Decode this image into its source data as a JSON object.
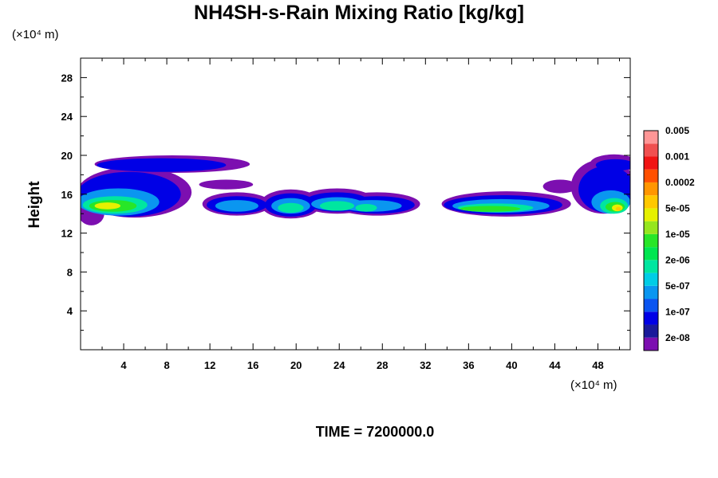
{
  "chart_data": {
    "type": "heatmap",
    "title": "NH4SH-s-Rain Mixing Ratio [kg/kg]",
    "ylabel": "Height",
    "x_unit": "(×10⁴ m)",
    "y_unit": "(×10⁴ m)",
    "xlim": [
      0,
      51
    ],
    "ylim": [
      0,
      30
    ],
    "x_ticks": [
      "4",
      "8",
      "12",
      "16",
      "20",
      "24",
      "28",
      "32",
      "36",
      "40",
      "44",
      "48"
    ],
    "y_ticks": [
      "4",
      "8",
      "12",
      "16",
      "20",
      "24",
      "28"
    ],
    "time_label": "TIME = 7200000.0",
    "colorbar": {
      "colors": [
        "#7c0fb0",
        "#1a1a9a",
        "#0000e6",
        "#0a55f0",
        "#0a96f0",
        "#00cde6",
        "#00e6a0",
        "#00e650",
        "#28e628",
        "#96e61e",
        "#e6f000",
        "#ffc800",
        "#ff9600",
        "#ff5000",
        "#f01414",
        "#f05050",
        "#ff9696"
      ],
      "labels": [
        "2e-08",
        "1e-07",
        "5e-07",
        "2e-06",
        "1e-05",
        "5e-05",
        "0.0002",
        "0.001",
        "0.005"
      ]
    },
    "x_tick_values": [
      4,
      8,
      12,
      16,
      20,
      24,
      28,
      32,
      36,
      40,
      44,
      48
    ],
    "y_tick_values": [
      4,
      8,
      12,
      16,
      20,
      24,
      28
    ],
    "layers": [
      {
        "level": 0,
        "blobs": [
          {
            "x": 5,
            "y": 16.2,
            "rx": 5.3,
            "ry": 2.6
          },
          {
            "x": 8.5,
            "y": 19.1,
            "rx": 7.2,
            "ry": 0.9
          },
          {
            "x": 19.5,
            "y": 15.0,
            "rx": 2.8,
            "ry": 1.5
          },
          {
            "x": 23.8,
            "y": 15.3,
            "rx": 3.5,
            "ry": 1.3
          },
          {
            "x": 27.5,
            "y": 15.0,
            "rx": 4.0,
            "ry": 1.2
          },
          {
            "x": 39.5,
            "y": 15.0,
            "rx": 6.0,
            "ry": 1.3
          },
          {
            "x": 14.5,
            "y": 15.0,
            "rx": 3.2,
            "ry": 1.2
          },
          {
            "x": 48.5,
            "y": 16.8,
            "rx": 3.0,
            "ry": 2.8
          },
          {
            "x": 49.5,
            "y": 19.2,
            "rx": 2.2,
            "ry": 0.9
          },
          {
            "x": 13.5,
            "y": 17.0,
            "rx": 2.5,
            "ry": 0.5
          },
          {
            "x": 44.5,
            "y": 16.8,
            "rx": 1.6,
            "ry": 0.7
          },
          {
            "x": 1.0,
            "y": 14.0,
            "rx": 1.2,
            "ry": 1.2
          }
        ]
      },
      {
        "level": 2,
        "blobs": [
          {
            "x": 4.5,
            "y": 16.0,
            "rx": 4.8,
            "ry": 2.3
          },
          {
            "x": 7.5,
            "y": 19.0,
            "rx": 6.0,
            "ry": 0.7
          },
          {
            "x": 19.5,
            "y": 14.9,
            "rx": 2.4,
            "ry": 1.2
          },
          {
            "x": 23.8,
            "y": 15.2,
            "rx": 3.0,
            "ry": 1.0
          },
          {
            "x": 27.5,
            "y": 14.9,
            "rx": 3.5,
            "ry": 0.9
          },
          {
            "x": 39.2,
            "y": 14.9,
            "rx": 5.5,
            "ry": 1.0
          },
          {
            "x": 14.5,
            "y": 14.9,
            "rx": 2.8,
            "ry": 0.9
          },
          {
            "x": 48.8,
            "y": 16.5,
            "rx": 2.6,
            "ry": 2.4
          },
          {
            "x": 49.6,
            "y": 19.0,
            "rx": 1.8,
            "ry": 0.6
          }
        ]
      },
      {
        "level": 4,
        "blobs": [
          {
            "x": 3.5,
            "y": 15.2,
            "rx": 3.8,
            "ry": 1.4
          },
          {
            "x": 19.5,
            "y": 14.8,
            "rx": 1.8,
            "ry": 0.8
          },
          {
            "x": 23.8,
            "y": 15.0,
            "rx": 2.4,
            "ry": 0.7
          },
          {
            "x": 27.0,
            "y": 14.8,
            "rx": 2.8,
            "ry": 0.6
          },
          {
            "x": 39.0,
            "y": 14.8,
            "rx": 4.5,
            "ry": 0.7
          },
          {
            "x": 14.5,
            "y": 14.8,
            "rx": 2.0,
            "ry": 0.6
          },
          {
            "x": 49.2,
            "y": 15.2,
            "rx": 1.8,
            "ry": 1.2
          }
        ]
      },
      {
        "level": 6,
        "blobs": [
          {
            "x": 3.2,
            "y": 14.9,
            "rx": 3.0,
            "ry": 0.9
          },
          {
            "x": 19.5,
            "y": 14.6,
            "rx": 1.2,
            "ry": 0.5
          },
          {
            "x": 23.8,
            "y": 14.8,
            "rx": 1.6,
            "ry": 0.5
          },
          {
            "x": 26.5,
            "y": 14.6,
            "rx": 1.0,
            "ry": 0.4
          },
          {
            "x": 38.5,
            "y": 14.6,
            "rx": 3.5,
            "ry": 0.45
          },
          {
            "x": 49.5,
            "y": 14.8,
            "rx": 1.3,
            "ry": 0.8
          }
        ]
      },
      {
        "level": 8,
        "blobs": [
          {
            "x": 3.0,
            "y": 14.8,
            "rx": 2.2,
            "ry": 0.6
          },
          {
            "x": 38.0,
            "y": 14.5,
            "rx": 2.8,
            "ry": 0.3
          },
          {
            "x": 49.6,
            "y": 14.7,
            "rx": 0.9,
            "ry": 0.5
          }
        ]
      },
      {
        "level": 10,
        "blobs": [
          {
            "x": 2.5,
            "y": 14.8,
            "rx": 1.2,
            "ry": 0.35
          },
          {
            "x": 49.8,
            "y": 14.6,
            "rx": 0.5,
            "ry": 0.35
          }
        ]
      },
      {
        "level": 11,
        "blobs": [
          {
            "x": 49.9,
            "y": 14.5,
            "rx": 0.25,
            "ry": 0.2
          }
        ]
      }
    ]
  }
}
